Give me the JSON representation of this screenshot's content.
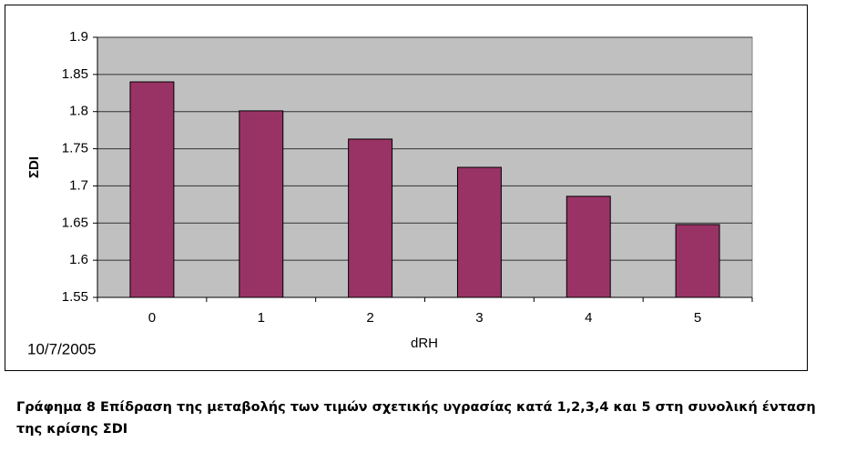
{
  "chart_data": {
    "type": "bar",
    "categories": [
      "0",
      "1",
      "2",
      "3",
      "4",
      "5"
    ],
    "values": [
      1.84,
      1.801,
      1.763,
      1.725,
      1.686,
      1.648
    ],
    "color": "#993366",
    "x_label": "dRH",
    "y_label": "ΣDI",
    "annotation": "10/7/2005",
    "ylim": [
      1.55,
      1.9
    ],
    "yticks": [
      1.55,
      1.6,
      1.65,
      1.7,
      1.75,
      1.8,
      1.85,
      1.9
    ],
    "grid": true,
    "caption": "Γράφημα 8 Επίδραση της μεταβολής των τιμών σχετικής υγρασίας κατά 1,2,3,4 και 5 στη συνολική ένταση της κρίσης ΣDI"
  }
}
